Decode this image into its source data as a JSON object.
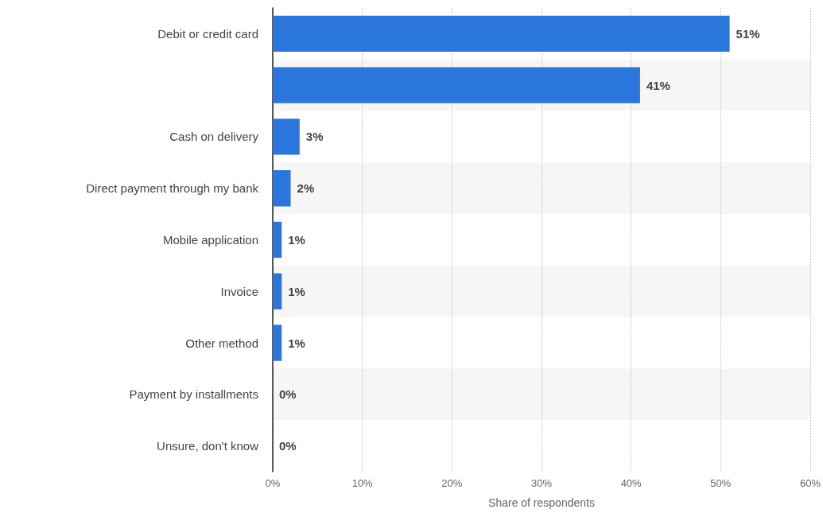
{
  "chart_data": {
    "type": "bar",
    "orientation": "horizontal",
    "categories": [
      "Debit or credit card",
      null,
      "Cash on delivery",
      "Direct payment through my bank",
      "Mobile application",
      "Invoice",
      "Other method",
      "Payment by installments",
      "Unsure, don't know"
    ],
    "values": [
      51,
      41,
      3,
      2,
      1,
      1,
      1,
      0,
      0
    ],
    "value_labels": [
      "51%",
      "41%",
      "3%",
      "2%",
      "1%",
      "1%",
      "1%",
      "0%",
      "0%"
    ],
    "color": "#2a76dd",
    "xlabel": "Share of respondents",
    "xlim": [
      0,
      60
    ],
    "xticks": [
      {
        "value": 0,
        "label": "0%"
      },
      {
        "value": 10,
        "label": "10%"
      },
      {
        "value": 20,
        "label": "20%"
      },
      {
        "value": 30,
        "label": "30%"
      },
      {
        "value": 40,
        "label": "40%"
      },
      {
        "value": 50,
        "label": "50%"
      },
      {
        "value": 60,
        "label": "60%"
      }
    ],
    "grid": "x"
  }
}
